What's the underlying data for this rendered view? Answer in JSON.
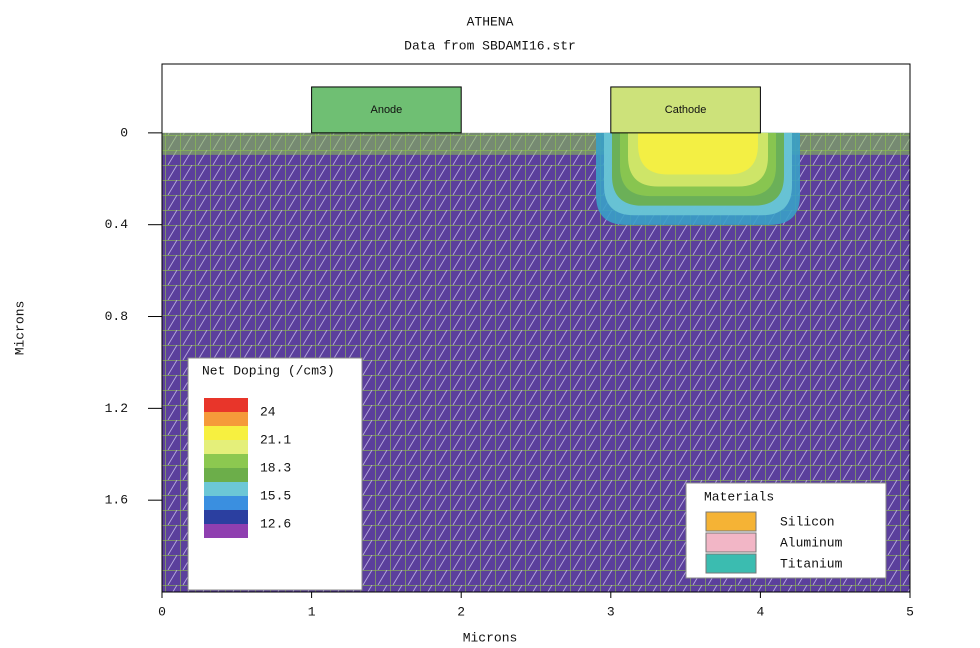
{
  "chart_data": {
    "type": "doping-map",
    "title": "ATHENA",
    "subtitle": "Data from SBDAMI16.str",
    "x_label": "Microns",
    "y_label": "Microns",
    "xlim": [
      0,
      5
    ],
    "xticks": [
      0,
      1,
      2,
      3,
      4,
      5
    ],
    "ylim": [
      -0.3,
      2.0
    ],
    "yticks": [
      0,
      0.4,
      0.8,
      1.2,
      1.6
    ],
    "y_inverted": true,
    "electrodes": [
      {
        "label": "Anode",
        "x": [
          1,
          2
        ],
        "top": -0.2,
        "color": "#6fbf73"
      },
      {
        "label": "Cathode",
        "x": [
          3,
          4
        ],
        "top": -0.2,
        "color": "#cde27a"
      }
    ],
    "doping_legend": {
      "title": "Net Doping (/cm3)",
      "levels": [
        24,
        21.1,
        18.3,
        15.5,
        12.6
      ],
      "colors": [
        "#e8352a",
        "#f59a3a",
        "#f7f040",
        "#e4ef7a",
        "#8cc850",
        "#6cae4a",
        "#6cc7d6",
        "#3a8fe0",
        "#2b3fa0",
        "#8f3fb0"
      ]
    },
    "materials_legend": {
      "title": "Materials",
      "items": [
        {
          "name": "Silicon",
          "color": "#f5b335"
        },
        {
          "name": "Aluminum",
          "color": "#f2b6c6"
        },
        {
          "name": "Titanium",
          "color": "#3bbcb0"
        }
      ]
    }
  }
}
